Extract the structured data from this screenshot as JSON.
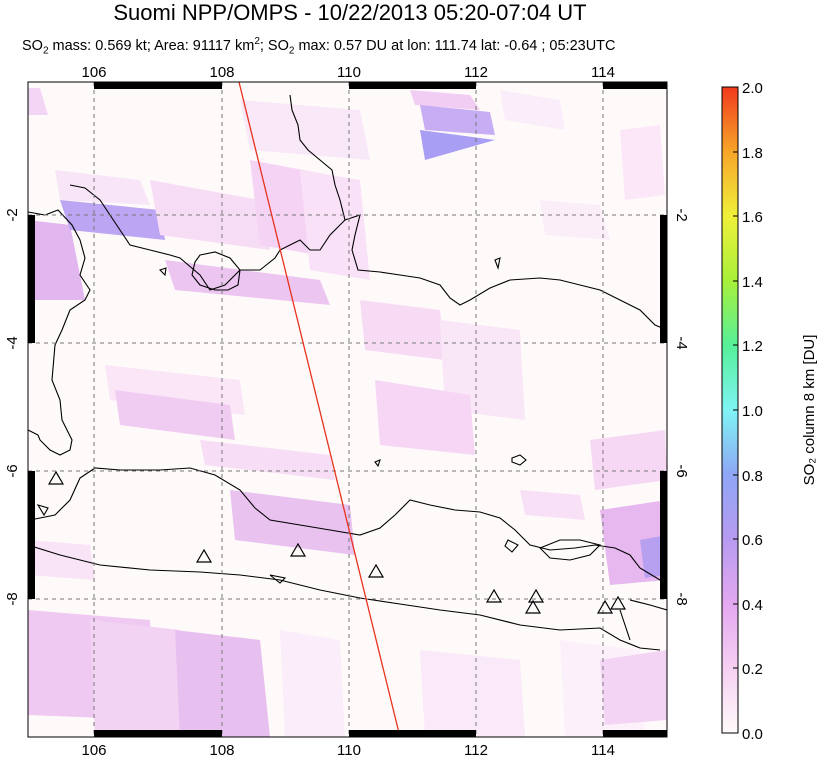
{
  "title": "Suomi NPP/OMPS - 10/22/2013 05:20-07:04 UT",
  "subtitle": {
    "prefix": "SO",
    "sub1": "2",
    "mass": " mass: 0.569 kt; Area: 91117 km",
    "sup": "2",
    "sep": "; SO",
    "sub2": "2",
    "rest": " max: 0.57 DU at lon: 111.74 lat: -0.64 ; 05:23UTC"
  },
  "map": {
    "lon_range": [
      105,
      115
    ],
    "lat_range": [
      -10.2,
      0.1
    ],
    "lon_ticks": [
      "106",
      "108",
      "110",
      "112",
      "114"
    ],
    "lat_ticks": [
      "-2",
      "-4",
      "-6",
      "-8"
    ],
    "grid": true,
    "orbit_line": {
      "color": "#e8321e",
      "from": [
        108.3,
        0.1
      ],
      "to": [
        110.8,
        -10.2
      ]
    },
    "volcanoes": [
      {
        "lon": 105.4,
        "lat": -6.1
      },
      {
        "lon": 107.7,
        "lat": -7.3
      },
      {
        "lon": 109.2,
        "lat": -7.2
      },
      {
        "lon": 110.4,
        "lat": -7.5
      },
      {
        "lon": 112.3,
        "lat": -7.9
      },
      {
        "lon": 112.9,
        "lat": -7.9
      },
      {
        "lon": 112.9,
        "lat": -8.1
      },
      {
        "lon": 114.0,
        "lat": -8.05
      },
      {
        "lon": 114.25,
        "lat": -8.0
      }
    ]
  },
  "colorbar": {
    "label": "SO₂ column 8 km [DU]",
    "ticks": [
      "2.0",
      "1.8",
      "1.6",
      "1.4",
      "1.2",
      "1.0",
      "0.8",
      "0.6",
      "0.4",
      "0.2",
      "0.0"
    ],
    "min": 0.0,
    "max": 2.0,
    "colors": [
      "#fffafa",
      "#f6d0f2",
      "#e3a8f0",
      "#b79bf0",
      "#8fa6f5",
      "#7ff4f4",
      "#56f09a",
      "#a8f03a",
      "#f0f03a",
      "#f7a52a",
      "#f13a1c"
    ]
  }
}
